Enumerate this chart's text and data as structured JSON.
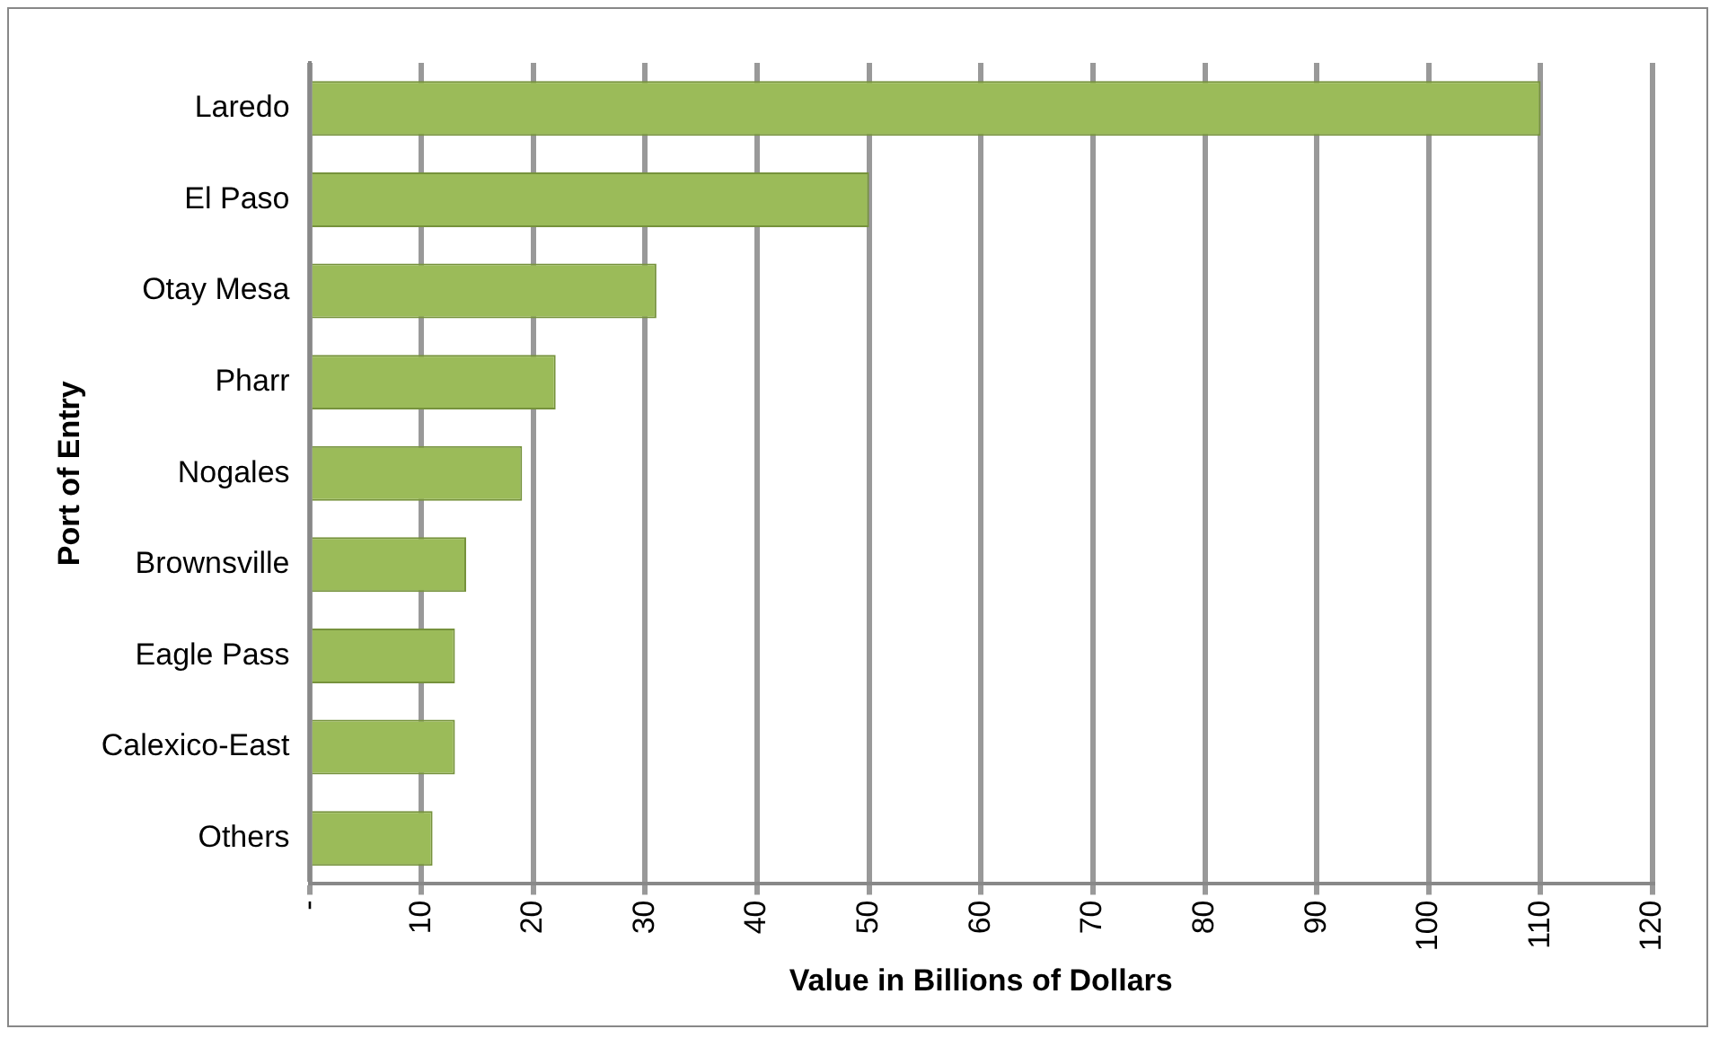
{
  "chart_data": {
    "type": "bar",
    "orientation": "horizontal",
    "xlabel": "Value in Billions of Dollars",
    "ylabel": "Port of Entry",
    "categories": [
      "Laredo",
      "El Paso",
      "Otay Mesa",
      "Pharr",
      "Nogales",
      "Brownsville",
      "Eagle Pass",
      "Calexico-East",
      "Others"
    ],
    "values": [
      110,
      50,
      31,
      22,
      19,
      14,
      13,
      13,
      11
    ],
    "color": "#9bbb59",
    "xlim": [
      0,
      120
    ],
    "xticks": [
      {
        "value": 0,
        "label": "-"
      },
      10,
      20,
      30,
      40,
      50,
      60,
      70,
      80,
      90,
      100,
      110,
      120
    ],
    "grid": "x",
    "legend": false
  }
}
